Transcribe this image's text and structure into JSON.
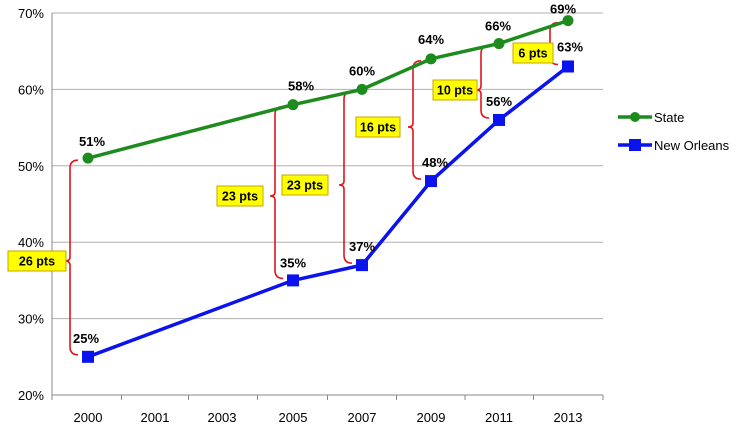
{
  "chart_data": {
    "type": "line",
    "categories": [
      "2000",
      "2001",
      "2003",
      "2005",
      "2007",
      "2009",
      "2011",
      "2013"
    ],
    "y_axis": {
      "min": 20,
      "max": 70,
      "step": 10,
      "ticks": [
        "20%",
        "30%",
        "40%",
        "50%",
        "60%",
        "70%"
      ]
    },
    "grid": true,
    "legend_position": "right",
    "series": [
      {
        "name": "State",
        "color": "#1e8b1e",
        "marker": "circle",
        "points": [
          {
            "x": "2000",
            "y": 51,
            "label": "51%"
          },
          {
            "x": "2005",
            "y": 58,
            "label": "58%"
          },
          {
            "x": "2007",
            "y": 60,
            "label": "60%"
          },
          {
            "x": "2009",
            "y": 64,
            "label": "64%"
          },
          {
            "x": "2011",
            "y": 66,
            "label": "66%"
          },
          {
            "x": "2013",
            "y": 69,
            "label": "69%"
          }
        ]
      },
      {
        "name": "New Orleans",
        "color": "#0a12ee",
        "marker": "square",
        "points": [
          {
            "x": "2000",
            "y": 25,
            "label": "25%"
          },
          {
            "x": "2005",
            "y": 35,
            "label": "35%"
          },
          {
            "x": "2007",
            "y": 37,
            "label": "37%"
          },
          {
            "x": "2009",
            "y": 48,
            "label": "48%"
          },
          {
            "x": "2011",
            "y": 56,
            "label": "56%"
          },
          {
            "x": "2013",
            "y": 63,
            "label": "63%"
          }
        ]
      }
    ],
    "gap_annotations": [
      {
        "year": "2000",
        "label": "26 pts"
      },
      {
        "year": "2005",
        "label": "23 pts"
      },
      {
        "year": "2007",
        "label": "23 pts"
      },
      {
        "year": "2009",
        "label": "16 pts"
      },
      {
        "year": "2011",
        "label": "10 pts"
      },
      {
        "year": "2013",
        "label": "6 pts"
      }
    ],
    "colors": {
      "bracket": "#e0141e",
      "callout_fill": "#ffff00",
      "callout_border": "#c8a400",
      "grid": "#b0b0b0"
    }
  }
}
